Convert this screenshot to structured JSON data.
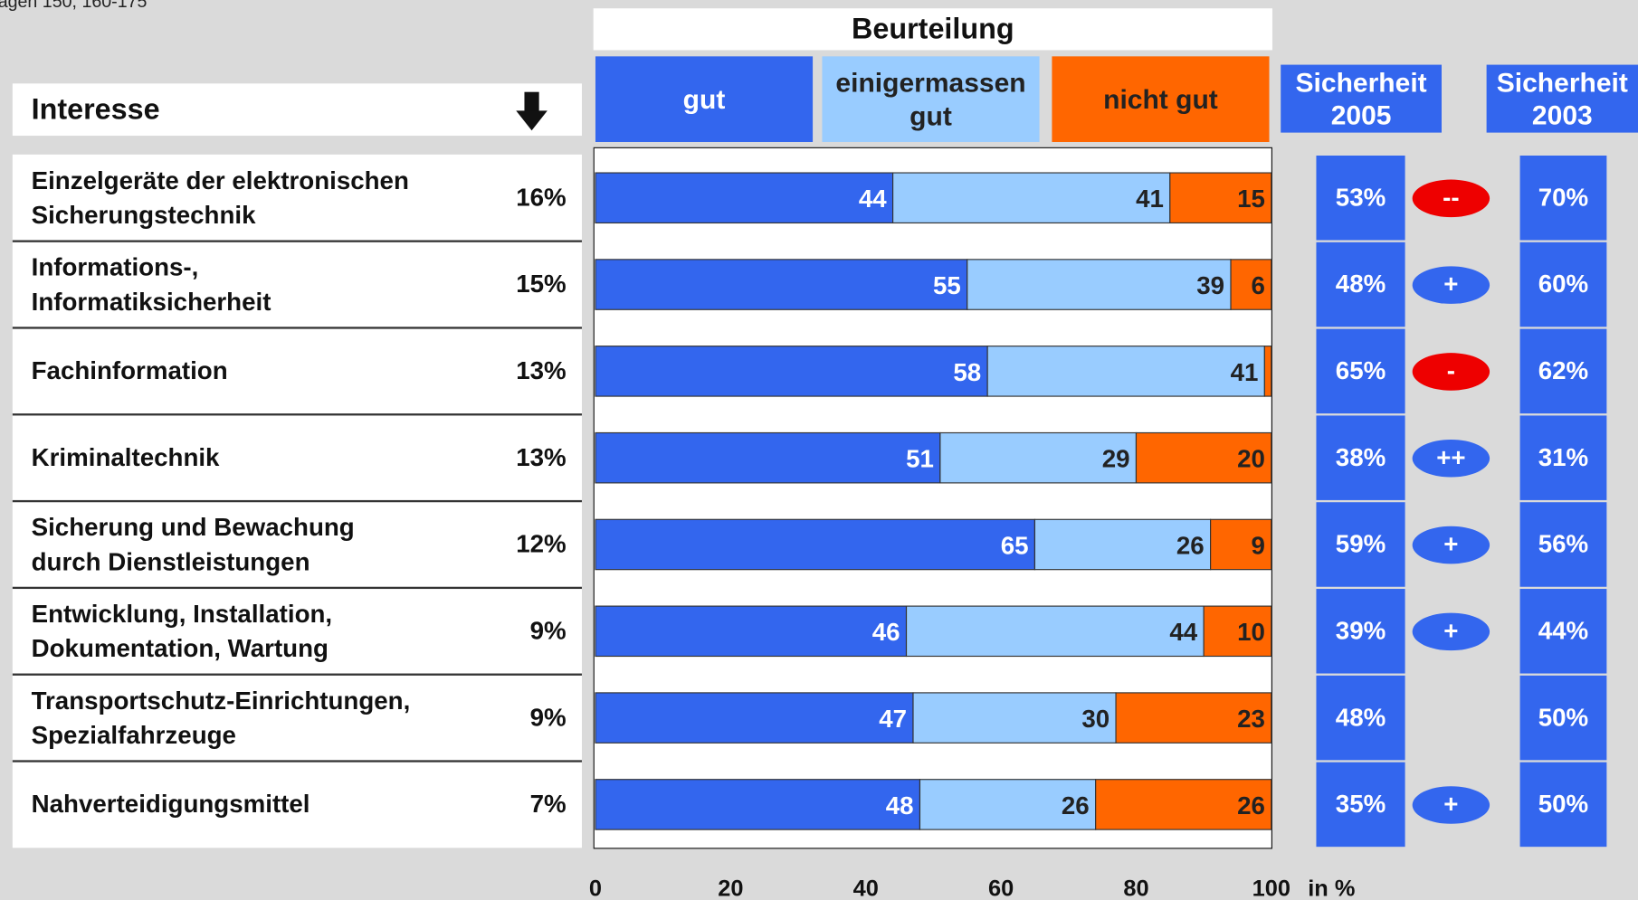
{
  "source": "agen 150, 160-175",
  "chart_data": {
    "type": "bar",
    "orientation": "horizontal",
    "stacked": true,
    "title": "Beurteilung",
    "row_header": "Interesse",
    "categories": [
      "Einzelgeräte der elektronischen\nSicherungstechnik",
      "Informations-,\nInformatiksicherheit",
      "Fachinformation",
      "Kriminaltechnik",
      "Sicherung und Bewachung\ndurch Dienstleistungen",
      "Entwicklung, Installation,\nDokumentation, Wartung",
      "Transportschutz-Einrichtungen,\nSpezialfahrzeuge",
      "Nahverteidigungsmittel"
    ],
    "interest": [
      "16%",
      "15%",
      "13%",
      "13%",
      "12%",
      "9%",
      "9%",
      "7%"
    ],
    "series": [
      {
        "name": "gut",
        "color": "#3366ee",
        "label_color": "#ffffff",
        "values": [
          44,
          55,
          58,
          51,
          65,
          46,
          47,
          48
        ]
      },
      {
        "name": "einigermassen\ngut",
        "color": "#99ccff",
        "label_color": "#222222",
        "values": [
          41,
          39,
          41,
          29,
          26,
          44,
          30,
          26
        ]
      },
      {
        "name": "nicht gut",
        "color": "#ff6600",
        "label_color": "#222222",
        "values": [
          15,
          6,
          1,
          20,
          9,
          10,
          23,
          26
        ]
      }
    ],
    "xlim": [
      0,
      100
    ],
    "xticks": [
      0,
      20,
      40,
      60,
      80,
      100
    ],
    "xlabel": "in %",
    "security_2005": {
      "title": "Sicherheit\n2005",
      "values": [
        "53%",
        "48%",
        "65%",
        "38%",
        "59%",
        "39%",
        "48%",
        "35%"
      ]
    },
    "change": [
      "--",
      "+",
      "-",
      "++",
      "+",
      "+",
      null,
      "+"
    ],
    "security_2003": {
      "title": "Sicherheit\n2003",
      "values": [
        "70%",
        "60%",
        "62%",
        "31%",
        "56%",
        "44%",
        "50%",
        "50%"
      ]
    }
  }
}
